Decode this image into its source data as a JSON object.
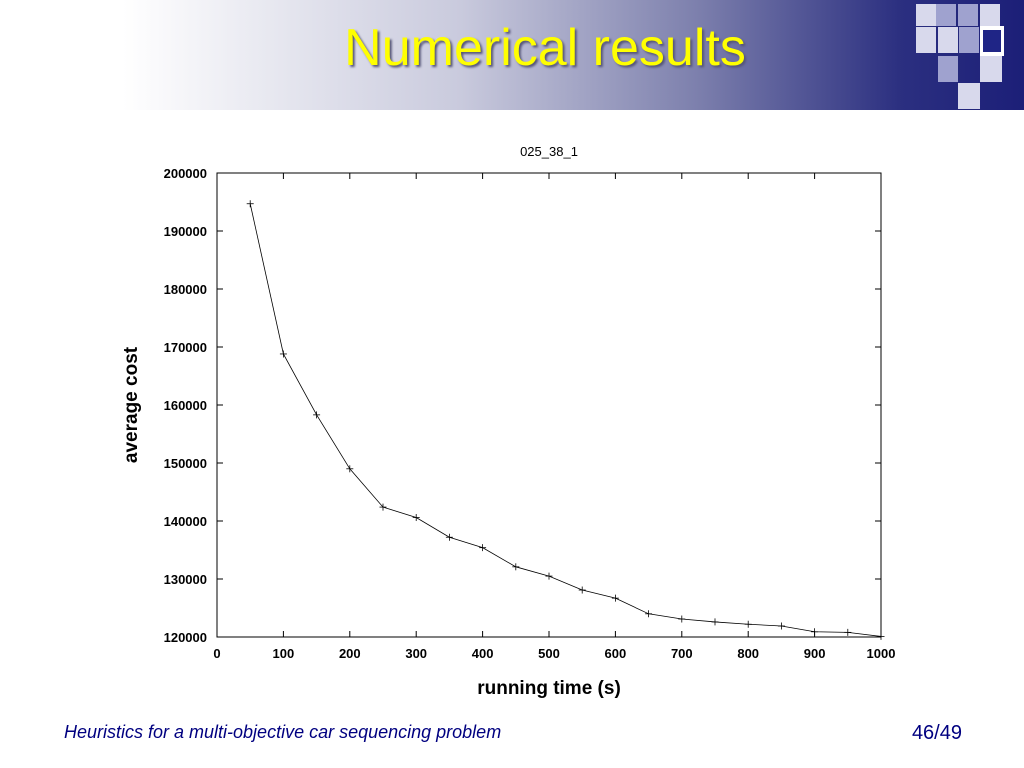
{
  "slide": {
    "title": "Numerical results",
    "footer": "Heuristics for a multi-objective car sequencing problem",
    "page_number": "46/49"
  },
  "colors": {
    "title": "#ffff00",
    "header_dark": "#1c1f78",
    "footer_text": "#000080",
    "plot_line": "#000000"
  },
  "chart_data": {
    "type": "line",
    "title": "025_38_1",
    "xlabel": "running time (s)",
    "ylabel": "average cost",
    "xlim": [
      0,
      1000
    ],
    "ylim": [
      120000,
      200000
    ],
    "xticks": [
      0,
      100,
      200,
      300,
      400,
      500,
      600,
      700,
      800,
      900,
      1000
    ],
    "yticks": [
      120000,
      130000,
      140000,
      150000,
      160000,
      170000,
      180000,
      190000,
      200000
    ],
    "grid": false,
    "marker": "+",
    "series": [
      {
        "x": [
          50,
          100,
          150,
          200,
          250,
          300,
          350,
          400,
          450,
          500,
          550,
          600,
          650,
          700,
          750,
          800,
          850,
          900,
          950,
          1000
        ],
        "values": [
          194700,
          168800,
          158300,
          149000,
          142400,
          140600,
          137200,
          135400,
          132100,
          130500,
          128100,
          126700,
          124000,
          123100,
          122600,
          122200,
          121900,
          120900,
          120800,
          120100
        ]
      }
    ]
  }
}
